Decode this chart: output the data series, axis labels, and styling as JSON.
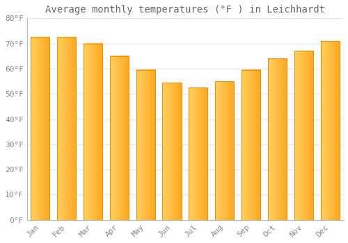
{
  "title": "Average monthly temperatures (°F ) in Leichhardt",
  "months": [
    "Jan",
    "Feb",
    "Mar",
    "Apr",
    "May",
    "Jun",
    "Jul",
    "Aug",
    "Sep",
    "Oct",
    "Nov",
    "Dec"
  ],
  "values": [
    72.5,
    72.5,
    70.0,
    65.0,
    59.5,
    54.5,
    52.5,
    55.0,
    59.5,
    64.0,
    67.0,
    71.0
  ],
  "bar_color_main": "#FFA820",
  "bar_color_light": "#FFD060",
  "bar_color_edge": "#E89010",
  "ylim": [
    0,
    80
  ],
  "ytick_step": 10,
  "background_color": "#FFFFFF",
  "grid_color": "#E0E0E0",
  "title_fontsize": 10,
  "tick_fontsize": 8,
  "tick_label_color": "#888888",
  "title_color": "#666666"
}
